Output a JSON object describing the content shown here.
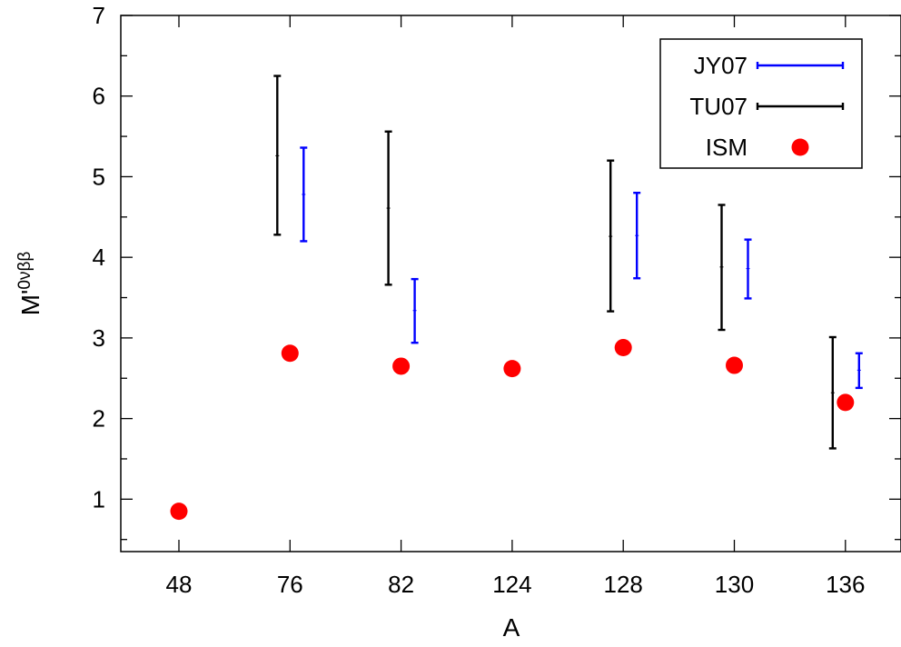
{
  "chart_data": {
    "type": "scatter",
    "title": "",
    "xlabel": "A",
    "ylabel": {
      "base": "M'",
      "sup": "0νββ"
    },
    "categories": [
      "48",
      "76",
      "82",
      "124",
      "128",
      "130",
      "136"
    ],
    "ylim": [
      0.35,
      7
    ],
    "yticks": [
      "1",
      "2",
      "3",
      "4",
      "5",
      "6",
      "7"
    ],
    "legend_position": "top-right",
    "series": [
      {
        "name": "JY07",
        "kind": "errorbar",
        "color": "#0000ff",
        "points": [
          {
            "x": "76",
            "low": 4.2,
            "mid": 4.78,
            "high": 5.36
          },
          {
            "x": "82",
            "low": 2.94,
            "mid": 3.34,
            "high": 3.73
          },
          {
            "x": "128",
            "low": 3.74,
            "mid": 4.27,
            "high": 4.8
          },
          {
            "x": "130",
            "low": 3.49,
            "mid": 3.86,
            "high": 4.22
          },
          {
            "x": "136",
            "low": 2.38,
            "mid": 2.6,
            "high": 2.81
          }
        ]
      },
      {
        "name": "TU07",
        "kind": "errorbar",
        "color": "#000000",
        "points": [
          {
            "x": "76",
            "low": 4.28,
            "mid": 5.26,
            "high": 6.25
          },
          {
            "x": "82",
            "low": 3.66,
            "mid": 4.61,
            "high": 5.56
          },
          {
            "x": "128",
            "low": 3.33,
            "mid": 4.26,
            "high": 5.2
          },
          {
            "x": "130",
            "low": 3.1,
            "mid": 3.88,
            "high": 4.65
          },
          {
            "x": "136",
            "low": 1.63,
            "mid": 2.32,
            "high": 3.01
          }
        ]
      },
      {
        "name": "ISM",
        "kind": "point",
        "color": "#ff0000",
        "points": [
          {
            "x": "48",
            "y": 0.85
          },
          {
            "x": "76",
            "y": 2.81
          },
          {
            "x": "82",
            "y": 2.65
          },
          {
            "x": "124",
            "y": 2.62
          },
          {
            "x": "128",
            "y": 2.88
          },
          {
            "x": "130",
            "y": 2.66
          },
          {
            "x": "136",
            "y": 2.2
          }
        ]
      }
    ]
  }
}
